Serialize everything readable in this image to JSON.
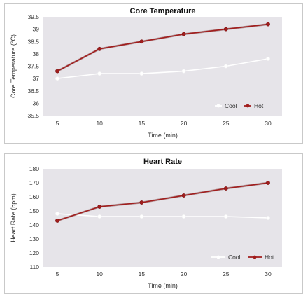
{
  "chart_data": [
    {
      "type": "line",
      "title": "Core Temperature",
      "xlabel": "Time (min)",
      "ylabel": "Core Temperature (°C)",
      "x": [
        5,
        10,
        15,
        20,
        25,
        30
      ],
      "xticks": [
        "5",
        "10",
        "15",
        "20",
        "25",
        "30"
      ],
      "ylim": [
        35.5,
        39.5
      ],
      "yticks": [
        "35.5",
        "36",
        "36.5",
        "37",
        "37.5",
        "38",
        "38.5",
        "39",
        "39.5"
      ],
      "grid": false,
      "legend_position": "bottom-right",
      "series": [
        {
          "name": "Cool",
          "color": "#ffffff",
          "values": [
            37.0,
            37.2,
            37.2,
            37.3,
            37.5,
            37.8
          ]
        },
        {
          "name": "Hot",
          "color": "#a11d1d",
          "values": [
            37.3,
            38.2,
            38.5,
            38.8,
            39.0,
            39.2
          ]
        }
      ]
    },
    {
      "type": "line",
      "title": "Heart Rate",
      "xlabel": "Time (min)",
      "ylabel": "Heart Rate (bpm)",
      "x": [
        5,
        10,
        15,
        20,
        25,
        30
      ],
      "xticks": [
        "5",
        "10",
        "15",
        "20",
        "25",
        "30"
      ],
      "ylim": [
        110,
        180
      ],
      "yticks": [
        "110",
        "120",
        "130",
        "140",
        "150",
        "160",
        "170",
        "180"
      ],
      "grid": false,
      "legend_position": "bottom-right",
      "series": [
        {
          "name": "Cool",
          "color": "#ffffff",
          "values": [
            148,
            146,
            146,
            146,
            146,
            145
          ]
        },
        {
          "name": "Hot",
          "color": "#a11d1d",
          "values": [
            143,
            153,
            156,
            161,
            166,
            170
          ]
        }
      ]
    }
  ],
  "style": {
    "plot_background": "#e6e4e9"
  }
}
